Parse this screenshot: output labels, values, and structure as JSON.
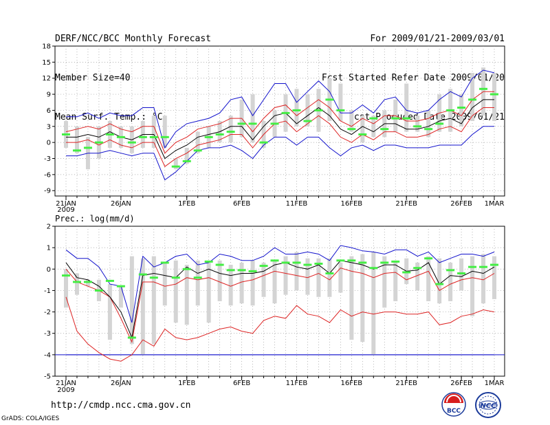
{
  "header": {
    "title": "DERF/NCC/BCC Monthly Forecast",
    "member_size": "Member Size=40",
    "variable": "Mean Surf. Temp.: °C",
    "period": "For 2009/01/21-2009/03/01",
    "started": "Fcst Started Refer Date 2009/01/20",
    "produced": "Fcst Produced Date 2009/01/21"
  },
  "footer": {
    "url": "http://cmdp.ncc.cma.gov.cn",
    "credit": "GrADS: COLA/IGES",
    "logo_bcc_text": "BCC",
    "logo_ncc_text": "NCC"
  },
  "colors": {
    "box": "#d4d4d4",
    "median": "#44ee44",
    "mean": "#000000",
    "spread": "#dd2222",
    "envelope": "#1111cc",
    "grid": "#999999"
  },
  "chart_data": [
    {
      "type": "box-whisker-line",
      "title": "Mean Surf. Temp.: °C",
      "ylim": [
        -10,
        18
      ],
      "yticks": [
        -9,
        -6,
        -3,
        0,
        3,
        6,
        9,
        12,
        15,
        18
      ],
      "ytick_labels": [
        "-9",
        "-6",
        "-3",
        "0",
        "3",
        "6",
        "9",
        "12",
        "15",
        "18"
      ],
      "x_start_day": 0,
      "x_end_day": 39,
      "xticks": [
        {
          "day": 0,
          "label": "21JAN"
        },
        {
          "day": 5,
          "label": "26JAN"
        },
        {
          "day": 11,
          "label": "1FEB"
        },
        {
          "day": 16,
          "label": "6FEB"
        },
        {
          "day": 21,
          "label": "11FEB"
        },
        {
          "day": 26,
          "label": "16FEB"
        },
        {
          "day": 31,
          "label": "21FEB"
        },
        {
          "day": 36,
          "label": "26FEB"
        },
        {
          "day": 39,
          "label": "1MAR"
        }
      ],
      "year_label": "2009",
      "box_low": [
        -1,
        -2,
        -5,
        -3,
        -1,
        -1,
        -2,
        -1,
        -1,
        -1,
        -5,
        -4,
        -2,
        -1,
        0,
        0,
        1,
        0,
        -1,
        1,
        2,
        3,
        3,
        2,
        4,
        4,
        2,
        0,
        1,
        1,
        2,
        2,
        2,
        1,
        2,
        2,
        3,
        4,
        5,
        4
      ],
      "box_high": [
        4,
        3,
        1,
        3,
        4,
        3,
        3,
        4,
        5,
        5,
        -3,
        -1,
        2,
        3,
        4,
        5,
        8,
        9,
        4,
        6,
        9,
        10,
        9,
        10,
        12,
        11,
        6,
        5,
        5,
        6,
        8,
        11,
        5,
        6,
        9,
        10,
        9,
        13,
        14,
        13
      ],
      "median": [
        1.5,
        -1.5,
        -1,
        0,
        1.5,
        1,
        0,
        1,
        1,
        1,
        -4.5,
        -3.5,
        -1.5,
        1,
        1.5,
        2,
        3.5,
        3.5,
        0,
        3.5,
        5.5,
        6,
        4,
        6,
        8,
        6,
        2.5,
        1.5,
        4.5,
        2.5,
        4.5,
        4.5,
        3,
        2.5,
        3.5,
        6,
        6.5,
        8,
        10,
        9
      ],
      "mean": [
        1,
        1,
        1.5,
        1,
        2,
        1,
        0.5,
        1.5,
        1.5,
        -3,
        -1.5,
        -0.5,
        1,
        1.5,
        2,
        3,
        3,
        0.5,
        3,
        5,
        5.5,
        3.5,
        5,
        6.5,
        5,
        2.5,
        1.5,
        3,
        2,
        3.5,
        3.5,
        2.5,
        2.5,
        3,
        4,
        4.5,
        3.5,
        6.5,
        8,
        8
      ],
      "red_upper": [
        2,
        2.5,
        3,
        2.5,
        3.5,
        2.5,
        2,
        3,
        3,
        -2,
        0,
        1,
        2.5,
        3,
        3.5,
        4.5,
        4.5,
        2,
        4.5,
        6.5,
        7,
        5,
        6.5,
        8,
        6.5,
        4,
        3,
        4.5,
        3.5,
        5,
        5,
        4,
        4,
        4.5,
        5.5,
        6,
        5,
        8,
        9.5,
        9.5
      ],
      "red_lower": [
        0,
        0,
        0.5,
        -0.5,
        0.5,
        -0.5,
        -1,
        0,
        0,
        -4.5,
        -3,
        -2,
        -0.5,
        0,
        0.5,
        1.5,
        1.5,
        -1,
        1.5,
        3.5,
        4,
        2,
        3.5,
        5,
        3.5,
        1,
        0,
        1.5,
        0.5,
        2,
        2,
        1,
        1,
        1.5,
        2.5,
        3,
        2,
        5,
        6.5,
        6.5
      ],
      "blue_upper": [
        4.8,
        4.8,
        5.5,
        4.5,
        5.5,
        5,
        5,
        6.5,
        6.5,
        -1,
        2,
        3.5,
        4,
        4.5,
        5.5,
        8,
        8.5,
        5,
        8,
        11,
        11,
        7.5,
        9.5,
        11.5,
        9.5,
        5.5,
        5.5,
        7,
        5.5,
        8,
        8.5,
        6,
        5.5,
        6,
        8,
        9.5,
        8.5,
        12,
        13.5,
        13
      ],
      "blue_lower": [
        -2.5,
        -2.5,
        -2,
        -2,
        -1.5,
        -2,
        -2.5,
        -2,
        -2,
        -7,
        -5.5,
        -3.5,
        -1.5,
        -1,
        -1,
        -0.5,
        -1.5,
        -3,
        -0.5,
        1,
        1,
        -0.5,
        1,
        1,
        -1,
        -2.5,
        -1,
        -0.5,
        -1.5,
        -0.5,
        -0.5,
        -1,
        -1,
        -1,
        -0.5,
        -0.5,
        -0.5,
        1.5,
        3,
        3
      ]
    },
    {
      "type": "box-whisker-line",
      "title": "Prec.: log(mm/d)",
      "ylim": [
        -5,
        2
      ],
      "yticks": [
        -5,
        -4,
        -3,
        -2,
        -1,
        0,
        1,
        2
      ],
      "ytick_labels": [
        "-5",
        "-4",
        "-3",
        "-2",
        "-1",
        "0",
        "1",
        "2"
      ],
      "x_start_day": 0,
      "x_end_day": 39,
      "xticks": [
        {
          "day": 0,
          "label": "21JAN"
        },
        {
          "day": 5,
          "label": "26JAN"
        },
        {
          "day": 11,
          "label": "1FEB"
        },
        {
          "day": 16,
          "label": "6FEB"
        },
        {
          "day": 21,
          "label": "11FEB"
        },
        {
          "day": 26,
          "label": "16FEB"
        },
        {
          "day": 31,
          "label": "21FEB"
        },
        {
          "day": 36,
          "label": "26FEB"
        },
        {
          "day": 39,
          "label": "1MAR"
        }
      ],
      "year_label": "2009",
      "baseline": -4,
      "box_low": [
        -1.8,
        -1.2,
        -0.8,
        -1.5,
        -3.3,
        -1.8,
        -3.5,
        -4,
        -3.5,
        -1.7,
        -2.5,
        -2.6,
        -1.7,
        -2.5,
        -1.5,
        -1.7,
        -1.6,
        -1.7,
        -1.3,
        -1.6,
        -1.2,
        -1,
        -1.2,
        -1.3,
        -1.3,
        -1.1,
        -3.3,
        -3.4,
        -4,
        -1.8,
        -1.5,
        -0.7,
        -1,
        -1.5,
        -1.6,
        -1.5,
        -1,
        -2.2,
        -1.6,
        -1.4
      ],
      "box_high": [
        0,
        -0.2,
        -0.5,
        -0.5,
        -0.7,
        -0.8,
        0.6,
        0.5,
        0.6,
        0.3,
        0.4,
        0.2,
        0.4,
        0.3,
        0.4,
        0.2,
        0.3,
        0.4,
        0.3,
        0.4,
        0.6,
        0.8,
        0.5,
        0.5,
        0.5,
        0.3,
        0.6,
        0.7,
        0.8,
        0.6,
        0.4,
        0.5,
        0.3,
        0.6,
        0.5,
        0.3,
        0.5,
        0.6,
        0.7,
        0.6
      ],
      "median": [
        -0.3,
        -0.6,
        -0.6,
        -1,
        -0.55,
        -0.8,
        -3.2,
        -0.25,
        -0.4,
        0.3,
        -0.4,
        0,
        -0.4,
        0.35,
        0.2,
        -0.05,
        -0.05,
        -0.1,
        0.15,
        0.4,
        0.3,
        0.3,
        0.2,
        0.25,
        -0.2,
        0.4,
        0.4,
        0.3,
        0.05,
        0.3,
        0.35,
        -0.15,
        0.05,
        0.5,
        -0.7,
        -0.05,
        -0.2,
        0.1,
        0.1,
        0.2
      ],
      "mean": [
        0.3,
        -0.4,
        -0.5,
        -0.8,
        -1.3,
        -2,
        -3.2,
        -0.3,
        -0.2,
        -0.3,
        -0.4,
        0.1,
        -0.2,
        0,
        -0.2,
        -0.3,
        -0.2,
        -0.2,
        -0.1,
        0.2,
        0.3,
        0.1,
        0,
        0.2,
        -0.2,
        0.4,
        0.3,
        0.2,
        0,
        0.2,
        0.2,
        -0.1,
        -0.05,
        0.3,
        -0.7,
        -0.3,
        -0.35,
        -0.1,
        -0.2,
        0.1
      ],
      "red_upper": [
        0,
        -0.6,
        -0.8,
        -1,
        -1.3,
        -2.3,
        -3.4,
        -0.6,
        -0.6,
        -0.8,
        -0.7,
        -0.4,
        -0.5,
        -0.4,
        -0.6,
        -0.8,
        -0.6,
        -0.5,
        -0.3,
        -0.1,
        -0.2,
        -0.3,
        -0.4,
        -0.2,
        -0.5,
        0.05,
        -0.1,
        -0.2,
        -0.4,
        -0.2,
        -0.15,
        -0.5,
        -0.3,
        -0.1,
        -1,
        -0.7,
        -0.5,
        -0.4,
        -0.5,
        -0.2
      ],
      "red_lower": [
        -1.3,
        -2.9,
        -3.5,
        -3.9,
        -4.2,
        -4.3,
        -4.0,
        -3.3,
        -3.6,
        -2.8,
        -3.2,
        -3.3,
        -3.2,
        -3.0,
        -2.8,
        -2.7,
        -2.9,
        -3.0,
        -2.4,
        -2.2,
        -2.3,
        -1.7,
        -2.1,
        -2.2,
        -2.5,
        -1.9,
        -2.2,
        -2.0,
        -2.1,
        -2.0,
        -2.0,
        -2.1,
        -2.1,
        -2.0,
        -2.6,
        -2.5,
        -2.2,
        -2.1,
        -1.9,
        -2.0
      ],
      "blue_upper": [
        0.9,
        0.5,
        0.5,
        0.1,
        -0.7,
        -0.8,
        -2.5,
        0.6,
        0.1,
        0.3,
        0.6,
        0.7,
        0.2,
        0.3,
        0.7,
        0.6,
        0.4,
        0.4,
        0.6,
        1.0,
        0.7,
        0.7,
        0.8,
        0.7,
        0.4,
        1.1,
        1.0,
        0.85,
        0.8,
        0.7,
        0.9,
        0.9,
        0.6,
        0.8,
        0.3,
        0.5,
        0.7,
        0.7,
        0.6,
        0.8
      ],
      "blue_lower": [
        -4,
        -4,
        -4,
        -4,
        -4,
        -4,
        -4,
        -4,
        -4,
        -4,
        -4,
        -4,
        -4,
        -4,
        -4,
        -4,
        -4,
        -4,
        -4,
        -4,
        -4,
        -4,
        -4,
        -4,
        -4,
        -4,
        -4,
        -4,
        -4,
        -4,
        -4,
        -4,
        -4,
        -4,
        -4,
        -4,
        -4,
        -4,
        -4,
        -4
      ]
    }
  ]
}
